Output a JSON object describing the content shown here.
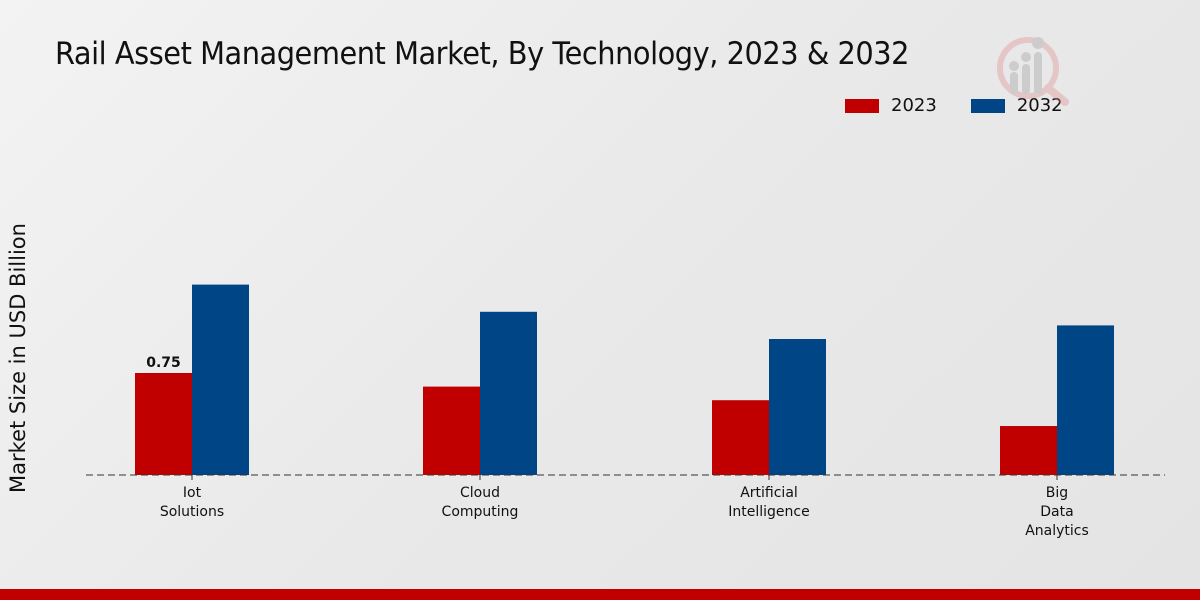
{
  "chart_data": {
    "type": "bar",
    "title": "Rail Asset Management Market, By Technology, 2023 & 2032",
    "xlabel": "",
    "ylabel": "Market Size in USD Billion",
    "categories": [
      [
        "Iot",
        "Solutions"
      ],
      [
        "Cloud",
        "Computing"
      ],
      [
        "Artificial",
        "Intelligence"
      ],
      [
        "Big",
        "Data",
        "Analytics"
      ]
    ],
    "series": [
      {
        "name": "2023",
        "color": "#c00000",
        "values": [
          0.75,
          0.65,
          0.55,
          0.36
        ]
      },
      {
        "name": "2032",
        "color": "#004586",
        "values": [
          1.4,
          1.2,
          1.0,
          1.1
        ]
      }
    ],
    "data_labels": [
      {
        "series": 0,
        "index": 0,
        "text": "0.75"
      }
    ],
    "ylim": [
      0,
      1.6
    ],
    "grid": false,
    "legend_position": "top-right"
  },
  "footer_color": "#c00000"
}
